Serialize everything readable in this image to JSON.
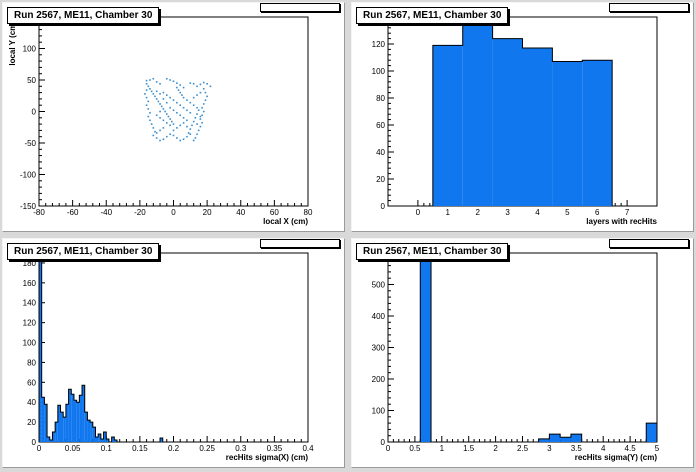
{
  "chart_data": [
    {
      "id": "pad1",
      "type": "scatter",
      "title": "Run 2567, ME11, Chamber 30",
      "xlabel": "local X (cm)",
      "ylabel": "local Y (cm)",
      "xlim": [
        -80,
        80
      ],
      "ylim": [
        -150,
        150
      ],
      "xticks": [
        -80,
        -60,
        -40,
        -20,
        0,
        20,
        40,
        60,
        80
      ],
      "yticks": [
        -150,
        -100,
        -50,
        0,
        50,
        100
      ],
      "marker_color": "#3a8fd0",
      "points": [
        [
          -16,
          49
        ],
        [
          -14,
          50
        ],
        [
          -12,
          52
        ],
        [
          -10,
          47
        ],
        [
          -8,
          44
        ],
        [
          -4,
          52
        ],
        [
          -2,
          50
        ],
        [
          0,
          48
        ],
        [
          2,
          45
        ],
        [
          4,
          42
        ],
        [
          6,
          38
        ],
        [
          10,
          45
        ],
        [
          12,
          44
        ],
        [
          14,
          40
        ],
        [
          16,
          43
        ],
        [
          18,
          46
        ],
        [
          20,
          44
        ],
        [
          22,
          40
        ],
        [
          -16,
          44
        ],
        [
          -15,
          40
        ],
        [
          -14,
          36
        ],
        [
          -13,
          32
        ],
        [
          -12,
          28
        ],
        [
          -11,
          24
        ],
        [
          -10,
          20
        ],
        [
          -9,
          16
        ],
        [
          -8,
          12
        ],
        [
          -7,
          8
        ],
        [
          -6,
          4
        ],
        [
          -5,
          0
        ],
        [
          -4,
          -4
        ],
        [
          -3,
          -8
        ],
        [
          -2,
          -12
        ],
        [
          -1,
          -16
        ],
        [
          0,
          -20
        ],
        [
          -16,
          34
        ],
        [
          -17,
          28
        ],
        [
          -16,
          22
        ],
        [
          -15,
          16
        ],
        [
          -16,
          10
        ],
        [
          -15,
          4
        ],
        [
          -14,
          -2
        ],
        [
          -15,
          -8
        ],
        [
          -14,
          -14
        ],
        [
          -13,
          -20
        ],
        [
          -12,
          -26
        ],
        [
          -11,
          -32
        ],
        [
          -12,
          -38
        ],
        [
          -10,
          -42
        ],
        [
          -8,
          -46
        ],
        [
          -6,
          -44
        ],
        [
          -4,
          -40
        ],
        [
          -2,
          -36
        ],
        [
          2,
          38
        ],
        [
          3,
          34
        ],
        [
          4,
          30
        ],
        [
          5,
          26
        ],
        [
          6,
          22
        ],
        [
          8,
          18
        ],
        [
          10,
          14
        ],
        [
          12,
          10
        ],
        [
          14,
          6
        ],
        [
          15,
          2
        ],
        [
          14,
          -4
        ],
        [
          13,
          -10
        ],
        [
          12,
          -16
        ],
        [
          11,
          -22
        ],
        [
          10,
          -28
        ],
        [
          9,
          -34
        ],
        [
          8,
          -40
        ],
        [
          6,
          -44
        ],
        [
          4,
          -46
        ],
        [
          2,
          -42
        ],
        [
          0,
          -38
        ],
        [
          18,
          36
        ],
        [
          19,
          30
        ],
        [
          20,
          24
        ],
        [
          19,
          18
        ],
        [
          18,
          12
        ],
        [
          17,
          6
        ],
        [
          18,
          0
        ],
        [
          17,
          -6
        ],
        [
          16,
          -12
        ],
        [
          17,
          -18
        ],
        [
          16,
          -24
        ],
        [
          15,
          -30
        ],
        [
          14,
          -36
        ],
        [
          13,
          -42
        ],
        [
          12,
          -46
        ],
        [
          -6,
          30
        ],
        [
          -4,
          26
        ],
        [
          -2,
          22
        ],
        [
          0,
          18
        ],
        [
          2,
          14
        ],
        [
          4,
          10
        ],
        [
          6,
          6
        ],
        [
          8,
          2
        ],
        [
          10,
          -2
        ],
        [
          -2,
          6
        ],
        [
          0,
          2
        ],
        [
          2,
          -2
        ],
        [
          4,
          -6
        ],
        [
          6,
          -10
        ],
        [
          8,
          -14
        ],
        [
          -8,
          -10
        ],
        [
          -6,
          -14
        ],
        [
          -4,
          -18
        ],
        [
          -2,
          -22
        ],
        [
          -10,
          32
        ],
        [
          -8,
          28
        ],
        [
          -6,
          20
        ],
        [
          -4,
          14
        ],
        [
          -8,
          0
        ],
        [
          -10,
          -6
        ],
        [
          -6,
          -26
        ],
        [
          -8,
          -30
        ],
        [
          -10,
          -34
        ],
        [
          0,
          -30
        ],
        [
          2,
          -26
        ],
        [
          4,
          -22
        ],
        [
          6,
          -18
        ],
        [
          8,
          -24
        ],
        [
          10,
          -36
        ],
        [
          14,
          -20
        ],
        [
          16,
          -8
        ],
        [
          12,
          22
        ],
        [
          14,
          26
        ],
        [
          16,
          30
        ]
      ]
    },
    {
      "id": "pad2",
      "type": "bar",
      "title": "Run 2567, ME11, Chamber 30",
      "xlabel": "layers with recHits",
      "xlim": [
        -1,
        8
      ],
      "ylim": [
        0,
        140
      ],
      "xticks": [
        0,
        1,
        2,
        3,
        4,
        5,
        6,
        7
      ],
      "yticks": [
        0,
        20,
        40,
        60,
        80,
        100,
        120
      ],
      "bin_lo": -0.5,
      "bin_width": 1,
      "values": [
        0,
        119,
        135,
        124,
        117,
        107,
        108,
        0
      ],
      "fill_color": "#1177ee"
    },
    {
      "id": "pad3",
      "type": "bar",
      "title": "Run 2567, ME11, Chamber 30",
      "xlabel": "recHits sigma(X) (cm)",
      "xlim": [
        0,
        0.4
      ],
      "ylim": [
        0,
        190
      ],
      "xticks": [
        0,
        0.05,
        0.1,
        0.15,
        0.2,
        0.25,
        0.3,
        0.35,
        0.4
      ],
      "yticks": [
        0,
        20,
        40,
        60,
        80,
        100,
        120,
        140,
        160,
        180
      ],
      "bin_lo": 0,
      "bin_width": 0.004,
      "values": [
        188,
        45,
        38,
        5,
        2,
        10,
        20,
        37,
        30,
        25,
        38,
        53,
        48,
        42,
        40,
        47,
        57,
        30,
        22,
        20,
        15,
        5,
        8,
        3,
        10,
        3,
        0,
        5,
        2,
        0,
        0,
        0,
        0,
        0,
        0,
        0,
        0,
        0,
        0,
        0,
        0,
        0,
        0,
        0,
        0,
        4,
        0,
        0,
        0,
        0,
        0,
        0,
        0,
        0,
        0,
        0,
        0,
        0,
        0,
        0,
        0,
        0,
        0,
        0,
        0,
        0,
        0,
        0,
        0,
        0,
        0,
        0,
        0,
        0,
        0,
        0,
        0,
        0,
        0,
        0,
        0,
        0,
        0,
        0,
        0,
        0,
        0,
        0,
        0,
        0,
        0,
        0,
        0,
        0,
        0,
        0,
        0,
        0,
        0,
        0
      ],
      "fill_color": "#1177ee"
    },
    {
      "id": "pad4",
      "type": "bar",
      "title": "Run 2567, ME11, Chamber 30",
      "xlabel": "recHits sigma(Y) (cm)",
      "xlim": [
        0,
        5
      ],
      "ylim": [
        0,
        600
      ],
      "xticks": [
        0,
        0.5,
        1,
        1.5,
        2,
        2.5,
        3,
        3.5,
        4,
        4.5,
        5
      ],
      "xticklabels": [
        "0",
        "0.5",
        "1",
        "1.5",
        "2",
        "2.5",
        "3",
        "3.5",
        "4",
        "4.5",
        "5"
      ],
      "yticks": [
        0,
        100,
        200,
        300,
        400,
        500
      ],
      "bin_lo": 0,
      "bin_width": 0.2,
      "values": [
        0,
        0,
        0,
        575,
        0,
        0,
        0,
        0,
        0,
        0,
        0,
        0,
        0,
        0,
        10,
        25,
        15,
        25,
        0,
        0,
        0,
        0,
        0,
        0,
        60
      ],
      "fill_color": "#1177ee"
    }
  ]
}
